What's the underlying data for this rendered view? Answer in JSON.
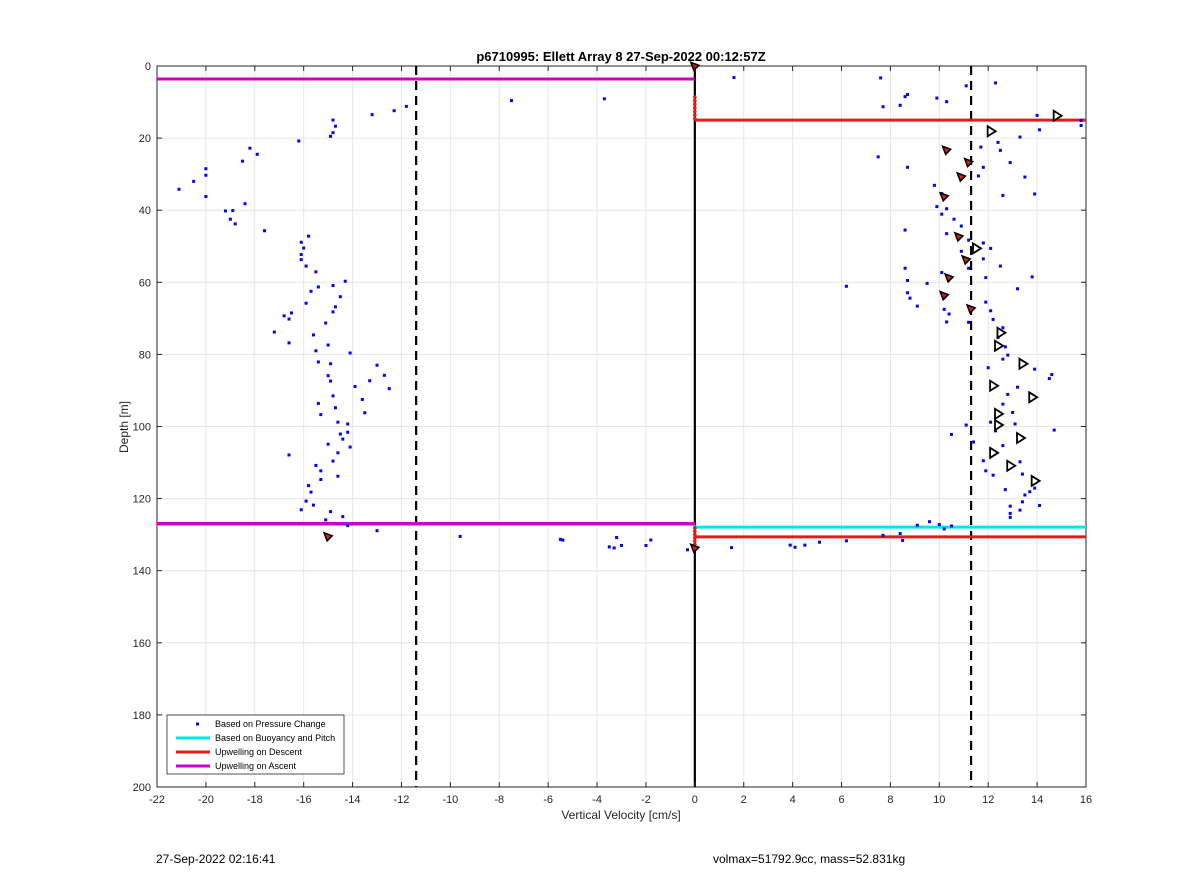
{
  "chart_data": {
    "type": "scatter",
    "title": "p6710995: Ellett Array 8 27-Sep-2022 00:12:57Z",
    "xlabel": "Vertical Velocity [cm/s]",
    "ylabel": "Depth [m]",
    "xlim": [
      -22,
      16
    ],
    "ylim": [
      0,
      200
    ],
    "y_reversed": true,
    "grid": true,
    "legend_position": "bottom-left",
    "xticks": [
      -22,
      -20,
      -18,
      -16,
      -14,
      -12,
      -10,
      -8,
      -6,
      -4,
      -2,
      0,
      2,
      4,
      6,
      8,
      10,
      12,
      14,
      16
    ],
    "yticks": [
      0,
      20,
      40,
      60,
      80,
      100,
      120,
      140,
      160,
      180,
      200
    ],
    "colors": {
      "pressure": "#0000ff",
      "buoyancy": "#00e5ee",
      "upwelling_descent": "#e31a1c",
      "upwelling_ascent": "#cc00cc",
      "reference": "#000000"
    },
    "legend": [
      {
        "label": "Based on Pressure Change",
        "style": "dot",
        "color": "#0000ff"
      },
      {
        "label": "Based on Buoyancy and Pitch",
        "style": "line",
        "color": "#00e5ee"
      },
      {
        "label": "Upwelling on Descent",
        "style": "line",
        "color": "#e31a1c"
      },
      {
        "label": "Upwelling on Ascent",
        "style": "line",
        "color": "#cc00cc"
      }
    ],
    "reference_lines": {
      "dashed_x": [
        -11.4,
        11.3
      ],
      "solid_x": [
        0
      ]
    },
    "series": [
      {
        "name": "Based on Pressure Change",
        "kind": "scatter",
        "points": [
          [
            -21.1,
            34.2
          ],
          [
            -20.5,
            32
          ],
          [
            -20,
            28.5
          ],
          [
            -20,
            30.3
          ],
          [
            -20,
            36.2
          ],
          [
            -19.2,
            40.2
          ],
          [
            -19,
            42.5
          ],
          [
            -18.8,
            43.8
          ],
          [
            -18.9,
            40.1
          ],
          [
            -18.4,
            38.2
          ],
          [
            -18.5,
            26.4
          ],
          [
            -18.2,
            22.8
          ],
          [
            -17.9,
            24.5
          ],
          [
            -17.6,
            45.7
          ],
          [
            -16.2,
            20.8
          ],
          [
            -14.8,
            15
          ],
          [
            -14.7,
            16.7
          ],
          [
            -14.8,
            18.5
          ],
          [
            -14.9,
            19.5
          ],
          [
            -13.2,
            13.5
          ],
          [
            -12.3,
            12.4
          ],
          [
            -11.8,
            11.2
          ],
          [
            -7.5,
            9.6
          ],
          [
            -3.7,
            9.1
          ],
          [
            -15.8,
            47.2
          ],
          [
            -16.1,
            48.9
          ],
          [
            -16,
            50.5
          ],
          [
            -16.1,
            52.3
          ],
          [
            -16.1,
            53.7
          ],
          [
            -15.9,
            55.5
          ],
          [
            -15.5,
            57.1
          ],
          [
            -15.4,
            61.3
          ],
          [
            -15.7,
            62.5
          ],
          [
            -15.9,
            65.8
          ],
          [
            -16.5,
            68.5
          ],
          [
            -16.6,
            70.2
          ],
          [
            -16.8,
            69.3
          ],
          [
            -17.2,
            73.8
          ],
          [
            -16.6,
            76.8
          ],
          [
            -15.6,
            74.6
          ],
          [
            -15.5,
            79
          ],
          [
            -15.4,
            82.1
          ],
          [
            -15,
            77.4
          ],
          [
            -14.9,
            82.6
          ],
          [
            -15,
            85.9
          ],
          [
            -14.9,
            87.4
          ],
          [
            -14.8,
            91.5
          ],
          [
            -14.7,
            94.8
          ],
          [
            -14.6,
            98.8
          ],
          [
            -14.5,
            102.1
          ],
          [
            -15.4,
            93.6
          ],
          [
            -15.3,
            96.7
          ],
          [
            -14.3,
            59.7
          ],
          [
            -14.8,
            60.9
          ],
          [
            -14.5,
            64
          ],
          [
            -14.7,
            66.8
          ],
          [
            -14.8,
            68.2
          ],
          [
            -15.1,
            71.3
          ],
          [
            -14.1,
            79.6
          ],
          [
            -13.9,
            88.9
          ],
          [
            -13.3,
            87.3
          ],
          [
            -13,
            83
          ],
          [
            -12.7,
            85.8
          ],
          [
            -12.5,
            89.5
          ],
          [
            -13.6,
            92.5
          ],
          [
            -13.5,
            96.2
          ],
          [
            -14.2,
            99.3
          ],
          [
            -14.2,
            101.6
          ],
          [
            -14.4,
            103.5
          ],
          [
            -14.1,
            105.7
          ],
          [
            -14.6,
            107.3
          ],
          [
            -14.8,
            109.6
          ],
          [
            -15.5,
            110.8
          ],
          [
            -15.3,
            112.3
          ],
          [
            -14.6,
            113.8
          ],
          [
            -15.3,
            114.7
          ],
          [
            -15.8,
            116.4
          ],
          [
            -15.7,
            118.2
          ],
          [
            -15.9,
            120.7
          ],
          [
            -15.6,
            121.8
          ],
          [
            -16.1,
            123.1
          ],
          [
            -14.9,
            123.6
          ],
          [
            -15.1,
            125.9
          ],
          [
            -14.4,
            125
          ],
          [
            -14.2,
            127.5
          ],
          [
            -13,
            128.9
          ],
          [
            -16.6,
            107.9
          ],
          [
            -15,
            104.9
          ],
          [
            -9.6,
            130.5
          ],
          [
            -5.5,
            131.3
          ],
          [
            -5.4,
            131.5
          ],
          [
            -3.5,
            133.4
          ],
          [
            -3.3,
            133.7
          ],
          [
            -3.2,
            130.8
          ],
          [
            -3,
            133
          ],
          [
            -2,
            133
          ],
          [
            -1.8,
            131.5
          ],
          [
            -0.3,
            134.2
          ],
          [
            1.5,
            133.6
          ],
          [
            3.9,
            132.9
          ],
          [
            4.1,
            133.5
          ],
          [
            4.5,
            132.9
          ],
          [
            5.1,
            132.1
          ],
          [
            6.2,
            131.7
          ],
          [
            7.7,
            130.2
          ],
          [
            8.4,
            129.7
          ],
          [
            8.5,
            131.6
          ],
          [
            9.1,
            127.4
          ],
          [
            9.6,
            126.4
          ],
          [
            10,
            127.2
          ],
          [
            10.5,
            127.6
          ],
          [
            10.2,
            128.4
          ],
          [
            1.6,
            3.2
          ],
          [
            7.6,
            3.3
          ],
          [
            8.7,
            7.9
          ],
          [
            8.6,
            8.5
          ],
          [
            9.9,
            8.9
          ],
          [
            10.3,
            9.9
          ],
          [
            11.1,
            5.5
          ],
          [
            12.3,
            4.7
          ],
          [
            7.7,
            11.3
          ],
          [
            8.4,
            10.9
          ],
          [
            14,
            13.7
          ],
          [
            14.1,
            17.7
          ],
          [
            15.8,
            15.1
          ],
          [
            15.8,
            16.5
          ],
          [
            13.3,
            19.7
          ],
          [
            7.5,
            25.2
          ],
          [
            8.7,
            28.1
          ],
          [
            9.8,
            33.1
          ],
          [
            10.1,
            35.4
          ],
          [
            11.7,
            22.5
          ],
          [
            12.4,
            21.2
          ],
          [
            12.5,
            23.4
          ],
          [
            12.9,
            26.8
          ],
          [
            11.8,
            28.1
          ],
          [
            11.6,
            30.5
          ],
          [
            13.5,
            30.8
          ],
          [
            13.9,
            35.5
          ],
          [
            12.6,
            35.9
          ],
          [
            9.9,
            39
          ],
          [
            10.3,
            39.6
          ],
          [
            10.1,
            41.1
          ],
          [
            10.6,
            42.5
          ],
          [
            10.9,
            44.4
          ],
          [
            8.6,
            45.5
          ],
          [
            10.3,
            46.5
          ],
          [
            11.2,
            48.3
          ],
          [
            11.8,
            49.1
          ],
          [
            12.1,
            50.6
          ],
          [
            10.9,
            51.4
          ],
          [
            11.8,
            53.5
          ],
          [
            11.2,
            56.1
          ],
          [
            12.5,
            55.5
          ],
          [
            8.6,
            56.1
          ],
          [
            8.7,
            59.5
          ],
          [
            9.5,
            60.3
          ],
          [
            10.1,
            57.3
          ],
          [
            11.9,
            58.7
          ],
          [
            13.8,
            58.5
          ],
          [
            13.2,
            61.8
          ],
          [
            8.7,
            62.9
          ],
          [
            8.8,
            64.4
          ],
          [
            9.1,
            66.6
          ],
          [
            6.2,
            61.1
          ],
          [
            10.2,
            67.5
          ],
          [
            10.4,
            68.8
          ],
          [
            10.3,
            71
          ],
          [
            11.2,
            71.1
          ],
          [
            11.9,
            65.5
          ],
          [
            12.1,
            67.9
          ],
          [
            12.2,
            70.3
          ],
          [
            12.6,
            72.6
          ],
          [
            12.4,
            75.3
          ],
          [
            12.7,
            77.9
          ],
          [
            12.8,
            80.2
          ],
          [
            12.6,
            81.3
          ],
          [
            12,
            83.7
          ],
          [
            13.9,
            84.1
          ],
          [
            14.6,
            85.6
          ],
          [
            14.5,
            86.7
          ],
          [
            13.2,
            89.1
          ],
          [
            12.8,
            91.1
          ],
          [
            12.6,
            93.8
          ],
          [
            13,
            96.1
          ],
          [
            12.1,
            98.8
          ],
          [
            11.1,
            99.6
          ],
          [
            13.1,
            99.3
          ],
          [
            12.3,
            101.2
          ],
          [
            10.5,
            102.2
          ],
          [
            11.4,
            104.3
          ],
          [
            12.6,
            105.3
          ],
          [
            11.8,
            109.5
          ],
          [
            13.3,
            109.8
          ],
          [
            11.9,
            112.3
          ],
          [
            12.2,
            113.5
          ],
          [
            13.4,
            113.2
          ],
          [
            13.9,
            117.1
          ],
          [
            12.7,
            117.5
          ],
          [
            13.7,
            118.1
          ],
          [
            13.5,
            119
          ],
          [
            13.4,
            120.9
          ],
          [
            12.9,
            122.1
          ],
          [
            14.1,
            121.9
          ],
          [
            13.3,
            123.2
          ],
          [
            12.9,
            124.1
          ],
          [
            12.9,
            125.2
          ],
          [
            14.7,
            101
          ]
        ]
      },
      {
        "name": "Based on Buoyancy and Pitch",
        "kind": "hline",
        "segments": [
          {
            "x": [
              -22,
              0
            ],
            "y": 127.2
          },
          {
            "x": [
              0,
              16
            ],
            "y": 127.9
          }
        ]
      },
      {
        "name": "Upwelling on Descent",
        "kind": "hline",
        "segments": [
          {
            "x": [
              0,
              16
            ],
            "y": 15
          },
          {
            "x": [
              0,
              16
            ],
            "y": 130.6
          }
        ]
      },
      {
        "name": "Upwelling on Ascent",
        "kind": "hline",
        "segments": [
          {
            "x": [
              -22,
              0
            ],
            "y": 3.6
          },
          {
            "x": [
              -22,
              0
            ],
            "y": 126.9
          }
        ]
      },
      {
        "kind": "vertical-markers",
        "color": "#e31a1c",
        "x": 0,
        "y": [
          8.6,
          9.6,
          10.6,
          11.6,
          12.6,
          13.6,
          14.6
        ],
        "y2": [
          128.2,
          129.1,
          130,
          130.9,
          131.8,
          132.7
        ]
      },
      {
        "kind": "triangle-markers",
        "filled": [
          [
            0,
            0.1
          ],
          [
            10.3,
            23.4
          ],
          [
            11.2,
            26.8
          ],
          [
            10.9,
            30.8
          ],
          [
            10.2,
            36.3
          ],
          [
            10.8,
            47.4
          ],
          [
            11.1,
            53.8
          ],
          [
            10.4,
            58.8
          ],
          [
            10.2,
            63.7
          ],
          [
            11.3,
            67.4
          ],
          [
            -15,
            130.6
          ],
          [
            0,
            133.8
          ]
        ],
        "open": [
          [
            14.8,
            13.8
          ],
          [
            12.1,
            18.1
          ],
          [
            11.5,
            50.6
          ],
          [
            12.5,
            74
          ],
          [
            12.4,
            77.6
          ],
          [
            13.4,
            82.6
          ],
          [
            12.2,
            88.7
          ],
          [
            13.8,
            91.9
          ],
          [
            12.4,
            96.5
          ],
          [
            12.4,
            99.6
          ],
          [
            13.3,
            103.2
          ],
          [
            12.2,
            107.3
          ],
          [
            12.9,
            110.9
          ],
          [
            13.9,
            115.1
          ]
        ]
      }
    ]
  },
  "footer": {
    "timestamp": "27-Sep-2022 02:16:41",
    "volume_mass": "volmax=51792.9cc, mass=52.831kg"
  }
}
